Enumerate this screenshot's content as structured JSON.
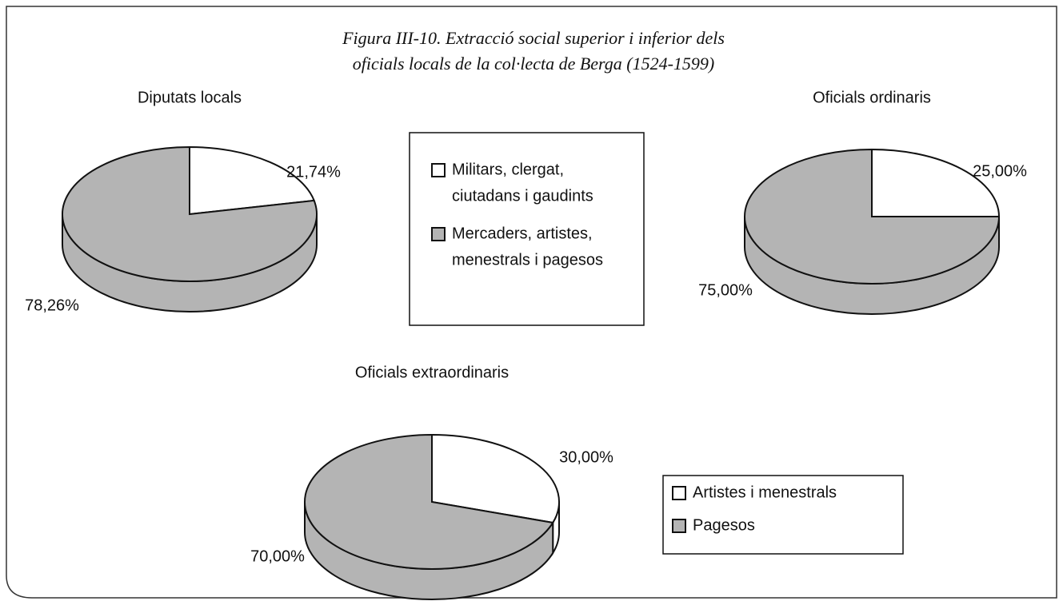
{
  "title": [
    "Figura III-10. Extracció social superior i inferior dels",
    "oficials locals de la col·lecta de Berga (1524-1599)"
  ],
  "chart_data": [
    {
      "type": "pie",
      "title": "Diputats locals",
      "values": [
        21.74,
        78.26
      ],
      "value_labels": [
        "21,74%",
        "78,26%"
      ],
      "colors": [
        "#ffffff",
        "#b4b4b4"
      ]
    },
    {
      "type": "pie",
      "title": "Oficials ordinaris",
      "values": [
        25,
        75
      ],
      "value_labels": [
        "25,00%",
        "75,00%"
      ],
      "colors": [
        "#ffffff",
        "#b4b4b4"
      ]
    },
    {
      "type": "pie",
      "title": "Oficials extraordinaris",
      "values": [
        30,
        70
      ],
      "value_labels": [
        "30,00%",
        "70,00%"
      ],
      "colors": [
        "#ffffff",
        "#b4b4b4"
      ]
    }
  ],
  "legends": [
    {
      "labels": [
        [
          "Militars, clergat,",
          "ciutadans i gaudints"
        ],
        [
          "Mercaders, artistes,",
          "menestrals i pagesos"
        ]
      ],
      "colors": [
        "#ffffff",
        "#b4b4b4"
      ]
    },
    {
      "labels": [
        [
          "Artistes i menestrals"
        ],
        [
          "Pagesos"
        ]
      ],
      "colors": [
        "#ffffff",
        "#b4b4b4"
      ]
    }
  ]
}
